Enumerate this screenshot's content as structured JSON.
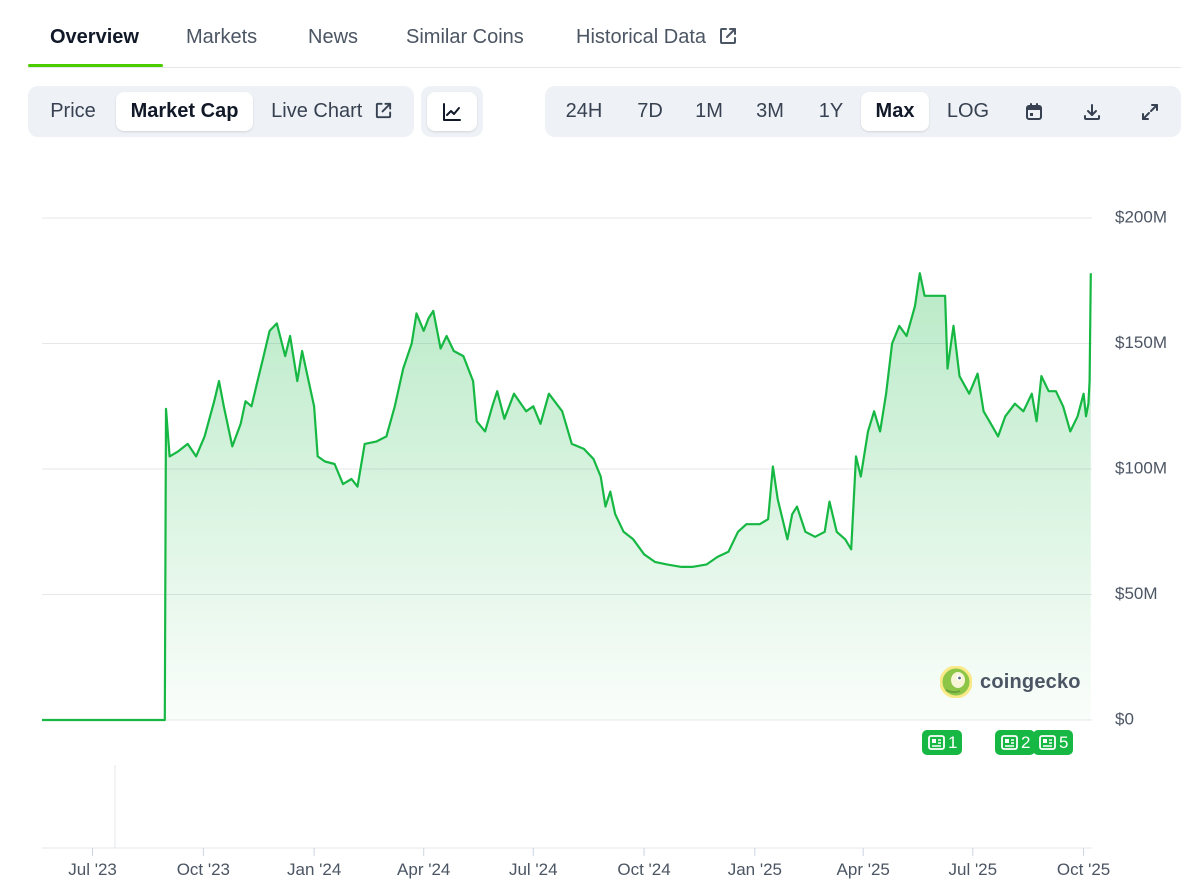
{
  "tabs": [
    {
      "label": "Overview",
      "active": true
    },
    {
      "label": "Markets"
    },
    {
      "label": "News"
    },
    {
      "label": "Similar Coins"
    },
    {
      "label": "Historical Data",
      "icon": "external-link-icon"
    }
  ],
  "left_toolbar": {
    "price_label": "Price",
    "market_cap_label": "Market Cap",
    "live_chart_label": "Live Chart",
    "live_chart_icon": "external-link-icon",
    "chart_type_icon": "line-chart-icon"
  },
  "range_toolbar": {
    "ranges": [
      "24H",
      "7D",
      "1M",
      "3M",
      "1Y",
      "Max"
    ],
    "selected": "Max",
    "log_label": "LOG",
    "icons": [
      "calendar-icon",
      "download-icon",
      "fullscreen-icon"
    ]
  },
  "watermark": {
    "text": "coingecko",
    "icon": "gecko-logo-icon"
  },
  "news_markers": [
    {
      "count": "1",
      "icon": "newspaper-icon",
      "date": "2025-05"
    },
    {
      "count": "2",
      "icon": "newspaper-icon",
      "date": "2025-08"
    },
    {
      "count": "5",
      "icon": "newspaper-icon",
      "date": "2025-09"
    }
  ],
  "colors": {
    "accent": "#4bcc00",
    "line": "#16b843",
    "badge": "#16b843",
    "grid": "#e5e7eb",
    "toolbar_bg": "#eef2f6"
  },
  "chart_data": {
    "type": "area",
    "y_axis_side": "right",
    "grid": true,
    "ylim": [
      0,
      200
    ],
    "y_unit": "USD millions",
    "y_ticks": [
      "$200M",
      "$150M",
      "$100M",
      "$50M",
      "$0"
    ],
    "x_ticks": [
      "Jul '23",
      "Oct '23",
      "Jan '24",
      "Apr '24",
      "Jul '24",
      "Oct '24",
      "Jan '25",
      "Apr '25",
      "Jul '25",
      "Oct '25"
    ],
    "xlim": [
      "2023-05-20",
      "2025-10-08"
    ],
    "series": [
      {
        "points": [
          [
            "2023-05-20",
            0
          ],
          [
            "2023-08-30",
            0
          ],
          [
            "2023-08-31",
            124
          ],
          [
            "2023-09-03",
            105
          ],
          [
            "2023-09-10",
            107
          ],
          [
            "2023-09-18",
            110
          ],
          [
            "2023-09-25",
            105
          ],
          [
            "2023-10-02",
            113
          ],
          [
            "2023-10-10",
            127
          ],
          [
            "2023-10-14",
            135
          ],
          [
            "2023-10-18",
            125
          ],
          [
            "2023-10-25",
            109
          ],
          [
            "2023-11-01",
            118
          ],
          [
            "2023-11-05",
            127
          ],
          [
            "2023-11-10",
            125
          ],
          [
            "2023-11-15",
            135
          ],
          [
            "2023-11-20",
            145
          ],
          [
            "2023-11-25",
            155
          ],
          [
            "2023-12-01",
            158
          ],
          [
            "2023-12-08",
            145
          ],
          [
            "2023-12-12",
            153
          ],
          [
            "2023-12-18",
            135
          ],
          [
            "2023-12-22",
            147
          ],
          [
            "2024-01-01",
            125
          ],
          [
            "2024-01-04",
            105
          ],
          [
            "2024-01-10",
            103
          ],
          [
            "2024-01-18",
            102
          ],
          [
            "2024-01-25",
            94
          ],
          [
            "2024-02-01",
            96
          ],
          [
            "2024-02-06",
            93
          ],
          [
            "2024-02-12",
            110
          ],
          [
            "2024-02-22",
            111
          ],
          [
            "2024-03-01",
            113
          ],
          [
            "2024-03-08",
            125
          ],
          [
            "2024-03-15",
            140
          ],
          [
            "2024-03-22",
            150
          ],
          [
            "2024-03-26",
            162
          ],
          [
            "2024-04-01",
            155
          ],
          [
            "2024-04-05",
            160
          ],
          [
            "2024-04-09",
            163
          ],
          [
            "2024-04-15",
            148
          ],
          [
            "2024-04-20",
            153
          ],
          [
            "2024-04-26",
            147
          ],
          [
            "2024-05-04",
            145
          ],
          [
            "2024-05-12",
            135
          ],
          [
            "2024-05-15",
            119
          ],
          [
            "2024-05-22",
            115
          ],
          [
            "2024-05-28",
            125
          ],
          [
            "2024-06-01",
            131
          ],
          [
            "2024-06-07",
            120
          ],
          [
            "2024-06-15",
            130
          ],
          [
            "2024-06-25",
            123
          ],
          [
            "2024-07-01",
            125
          ],
          [
            "2024-07-07",
            118
          ],
          [
            "2024-07-14",
            130
          ],
          [
            "2024-07-25",
            123
          ],
          [
            "2024-08-02",
            110
          ],
          [
            "2024-08-12",
            108
          ],
          [
            "2024-08-20",
            104
          ],
          [
            "2024-08-26",
            97
          ],
          [
            "2024-08-30",
            85
          ],
          [
            "2024-09-03",
            91
          ],
          [
            "2024-09-07",
            82
          ],
          [
            "2024-09-14",
            75
          ],
          [
            "2024-09-22",
            72
          ],
          [
            "2024-10-01",
            66
          ],
          [
            "2024-10-10",
            63
          ],
          [
            "2024-10-20",
            62
          ],
          [
            "2024-11-01",
            61
          ],
          [
            "2024-11-10",
            61
          ],
          [
            "2024-11-22",
            62
          ],
          [
            "2024-12-01",
            65
          ],
          [
            "2024-12-10",
            67
          ],
          [
            "2024-12-18",
            75
          ],
          [
            "2024-12-25",
            78
          ],
          [
            "2025-01-05",
            78
          ],
          [
            "2025-01-12",
            80
          ],
          [
            "2025-01-16",
            101
          ],
          [
            "2025-01-20",
            88
          ],
          [
            "2025-01-28",
            72
          ],
          [
            "2025-02-01",
            82
          ],
          [
            "2025-02-05",
            85
          ],
          [
            "2025-02-12",
            75
          ],
          [
            "2025-02-20",
            73
          ],
          [
            "2025-02-28",
            75
          ],
          [
            "2025-03-04",
            87
          ],
          [
            "2025-03-10",
            75
          ],
          [
            "2025-03-17",
            72
          ],
          [
            "2025-03-22",
            68
          ],
          [
            "2025-03-26",
            105
          ],
          [
            "2025-03-30",
            97
          ],
          [
            "2025-04-05",
            115
          ],
          [
            "2025-04-10",
            123
          ],
          [
            "2025-04-15",
            115
          ],
          [
            "2025-04-20",
            130
          ],
          [
            "2025-04-25",
            150
          ],
          [
            "2025-05-01",
            157
          ],
          [
            "2025-05-07",
            153
          ],
          [
            "2025-05-14",
            165
          ],
          [
            "2025-05-18",
            178
          ],
          [
            "2025-05-22",
            169
          ],
          [
            "2025-05-26",
            169
          ],
          [
            "2025-06-08",
            169
          ],
          [
            "2025-06-10",
            140
          ],
          [
            "2025-06-15",
            157
          ],
          [
            "2025-06-20",
            137
          ],
          [
            "2025-06-28",
            130
          ],
          [
            "2025-07-05",
            138
          ],
          [
            "2025-07-10",
            123
          ],
          [
            "2025-07-16",
            118
          ],
          [
            "2025-07-22",
            113
          ],
          [
            "2025-07-28",
            121
          ],
          [
            "2025-08-05",
            126
          ],
          [
            "2025-08-12",
            123
          ],
          [
            "2025-08-19",
            130
          ],
          [
            "2025-08-23",
            119
          ],
          [
            "2025-08-27",
            137
          ],
          [
            "2025-09-02",
            131
          ],
          [
            "2025-09-08",
            131
          ],
          [
            "2025-09-14",
            125
          ],
          [
            "2025-09-20",
            115
          ],
          [
            "2025-09-26",
            121
          ],
          [
            "2025-10-01",
            130
          ],
          [
            "2025-10-03",
            121
          ],
          [
            "2025-10-05",
            126
          ],
          [
            "2025-10-06",
            135
          ],
          [
            "2025-10-07",
            178
          ]
        ]
      }
    ]
  }
}
